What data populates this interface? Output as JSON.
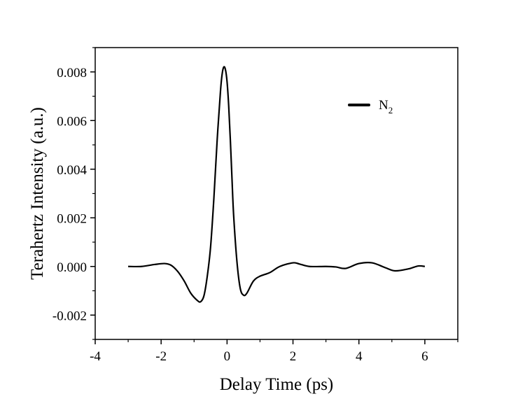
{
  "chart_data": {
    "type": "line",
    "title": "",
    "xlabel": "Delay Time (ps)",
    "ylabel": "Terahertz Intensity (a.u.)",
    "xlim": [
      -4,
      7
    ],
    "ylim": [
      -0.003,
      0.009
    ],
    "x_ticks": [
      -4,
      -2,
      0,
      2,
      4,
      6
    ],
    "x_tick_labels": [
      "-4",
      "-2",
      "0",
      "2",
      "4",
      "6"
    ],
    "y_ticks": [
      -0.002,
      0.0,
      0.002,
      0.004,
      0.006,
      0.008
    ],
    "y_tick_labels": [
      "-0.002",
      "0.000",
      "0.002",
      "0.004",
      "0.006",
      "0.008"
    ],
    "grid": false,
    "legend_placement": "top-right",
    "series": [
      {
        "name": "N",
        "name_subscript": "2",
        "color": "#000000",
        "x": [
          -3.0,
          -2.6,
          -2.2,
          -1.9,
          -1.7,
          -1.5,
          -1.3,
          -1.1,
          -0.9,
          -0.8,
          -0.7,
          -0.6,
          -0.5,
          -0.4,
          -0.3,
          -0.2,
          -0.15,
          -0.1,
          -0.05,
          0.0,
          0.05,
          0.1,
          0.15,
          0.2,
          0.3,
          0.4,
          0.5,
          0.6,
          0.8,
          1.0,
          1.3,
          1.6,
          2.0,
          2.2,
          2.5,
          3.0,
          3.3,
          3.6,
          4.0,
          4.4,
          4.8,
          5.1,
          5.5,
          5.8,
          6.0
        ],
        "y": [
          0.0,
          0.0,
          8e-05,
          0.00012,
          5e-05,
          -0.0002,
          -0.0006,
          -0.0011,
          -0.0014,
          -0.00145,
          -0.0012,
          -0.0004,
          0.0008,
          0.0028,
          0.0052,
          0.0072,
          0.0079,
          0.0082,
          0.0081,
          0.0076,
          0.0066,
          0.0052,
          0.0036,
          0.0021,
          0.0002,
          -0.0009,
          -0.00118,
          -0.0011,
          -0.0006,
          -0.0004,
          -0.00025,
          0.0,
          0.00015,
          0.0001,
          0.0,
          0.0,
          -2e-05,
          -8e-05,
          0.00012,
          0.00015,
          -5e-05,
          -0.00018,
          -0.0001,
          2e-05,
          0.0
        ]
      }
    ]
  }
}
